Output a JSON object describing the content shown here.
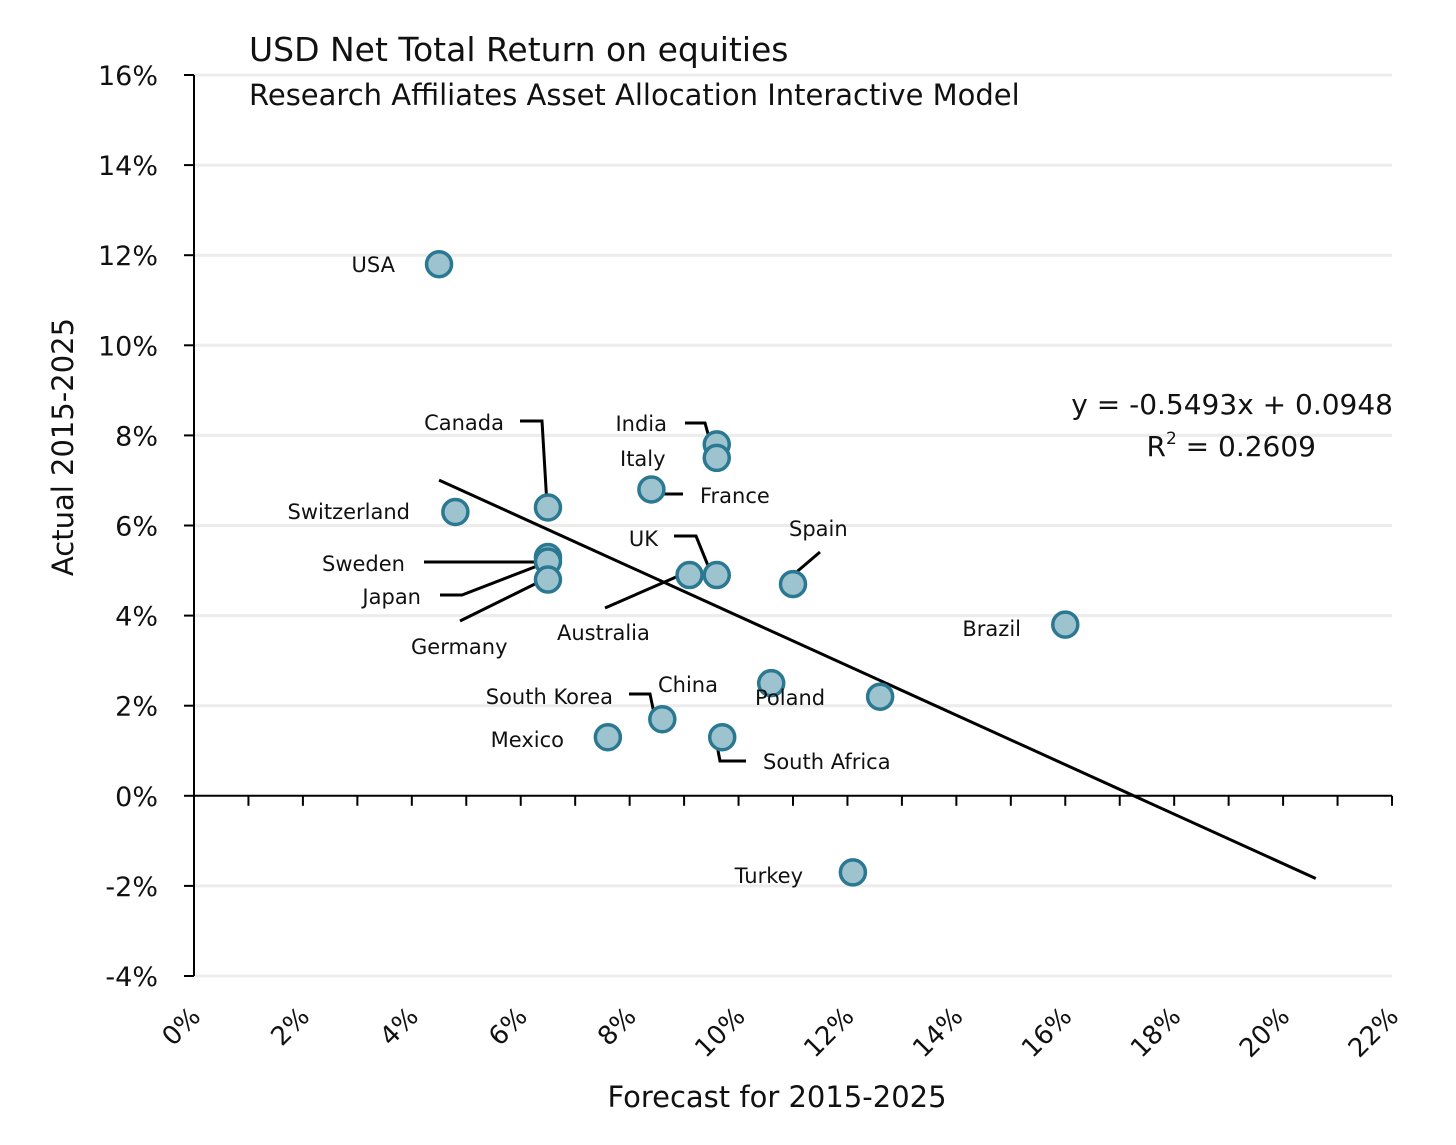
{
  "chart_data": {
    "type": "scatter",
    "title": "USD Net Total Return on equities",
    "subtitle": "Research Affiliates Asset Allocation Interactive Model",
    "xlabel": "Forecast for 2015-2025",
    "ylabel": "Actual 2015-2025",
    "xlim": [
      0,
      22
    ],
    "ylim": [
      -4,
      16
    ],
    "x_ticks": [
      "0%",
      "2%",
      "4%",
      "6%",
      "8%",
      "10%",
      "12%",
      "14%",
      "16%",
      "18%",
      "20%",
      "22%"
    ],
    "y_ticks": [
      "-4%",
      "-2%",
      "0%",
      "2%",
      "4%",
      "6%",
      "8%",
      "10%",
      "12%",
      "14%",
      "16%"
    ],
    "grid": "horizontal",
    "points": [
      {
        "name": "USA",
        "x": 4.5,
        "y": 11.8
      },
      {
        "name": "Switzerland",
        "x": 4.8,
        "y": 6.3
      },
      {
        "name": "Canada",
        "x": 6.5,
        "y": 6.4
      },
      {
        "name": "Sweden",
        "x": 6.5,
        "y": 5.3
      },
      {
        "name": "Japan",
        "x": 6.5,
        "y": 5.2
      },
      {
        "name": "Germany",
        "x": 6.5,
        "y": 4.8
      },
      {
        "name": "India",
        "x": 9.6,
        "y": 7.8
      },
      {
        "name": "Italy",
        "x": 9.6,
        "y": 7.5
      },
      {
        "name": "France",
        "x": 8.4,
        "y": 6.8
      },
      {
        "name": "UK",
        "x": 9.6,
        "y": 4.9
      },
      {
        "name": "Australia",
        "x": 9.1,
        "y": 4.9
      },
      {
        "name": "Spain",
        "x": 11.0,
        "y": 4.7
      },
      {
        "name": "Brazil",
        "x": 16.0,
        "y": 3.8
      },
      {
        "name": "China",
        "x": 10.6,
        "y": 2.5
      },
      {
        "name": "Poland",
        "x": 12.6,
        "y": 2.2
      },
      {
        "name": "South Korea",
        "x": 8.6,
        "y": 1.7
      },
      {
        "name": "Mexico",
        "x": 7.6,
        "y": 1.3
      },
      {
        "name": "South Africa",
        "x": 9.7,
        "y": 1.3
      },
      {
        "name": "Turkey",
        "x": 12.1,
        "y": -1.7
      }
    ],
    "trendline": {
      "slope": -0.5493,
      "intercept": 9.48,
      "x_range": [
        4.5,
        20.6
      ],
      "equation": "y = -0.5493x + 0.0948",
      "r2_prefix": "R",
      "r2_exponent": "2",
      "r2_value": " = 0.2609"
    }
  }
}
